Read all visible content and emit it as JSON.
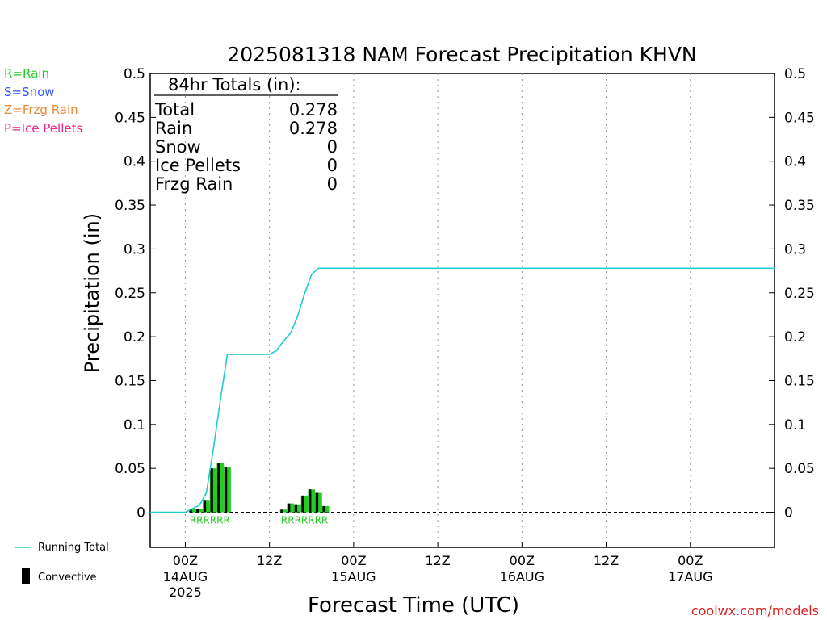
{
  "chart_data": {
    "type": "bar",
    "title": "2025081318 NAM Forecast Precipitation KHVN",
    "ylabel": "Precipitation (in)",
    "xlabel": "Forecast Time (UTC)",
    "ylim": [
      -0.04,
      0.5
    ],
    "xlim_hours": [
      -5,
      84
    ],
    "yticks": [
      "0",
      "0.05",
      "0.1",
      "0.15",
      "0.2",
      "0.25",
      "0.3",
      "0.35",
      "0.4",
      "0.45",
      "0.5"
    ],
    "xticks": [
      {
        "hour": 0,
        "label": "00Z",
        "date": "14AUG",
        "year": "2025"
      },
      {
        "hour": 12,
        "label": "12Z",
        "date": "",
        "year": ""
      },
      {
        "hour": 24,
        "label": "00Z",
        "date": "15AUG",
        "year": ""
      },
      {
        "hour": 36,
        "label": "12Z",
        "date": "",
        "year": ""
      },
      {
        "hour": 48,
        "label": "00Z",
        "date": "16AUG",
        "year": ""
      },
      {
        "hour": 60,
        "label": "12Z",
        "date": "",
        "year": ""
      },
      {
        "hour": 72,
        "label": "00Z",
        "date": "17AUG",
        "year": ""
      }
    ],
    "grid": "vertical-dotted",
    "legend_types": [
      "R=Rain",
      "S=Snow",
      "Z=Frzg Rain",
      "P=Ice Pellets"
    ],
    "legend_series": [
      "Running Total",
      "Convective"
    ],
    "totals_header": "84hr Totals (in):",
    "totals": [
      {
        "label": "Total",
        "value": "0.278"
      },
      {
        "label": "Rain",
        "value": "0.278"
      },
      {
        "label": "Snow",
        "value": "0"
      },
      {
        "label": "Ice Pellets",
        "value": "0"
      },
      {
        "label": "Frzg Rain",
        "value": "0"
      }
    ],
    "precip_bars": [
      {
        "hour": 1,
        "rain": 0.004,
        "convective": 0.004,
        "type": "R"
      },
      {
        "hour": 2,
        "rain": 0.004,
        "convective": 0.004,
        "type": "R"
      },
      {
        "hour": 3,
        "rain": 0.014,
        "convective": 0.014,
        "type": "R"
      },
      {
        "hour": 4,
        "rain": 0.05,
        "convective": 0.05,
        "type": "R"
      },
      {
        "hour": 5,
        "rain": 0.056,
        "convective": 0.056,
        "type": "R"
      },
      {
        "hour": 6,
        "rain": 0.051,
        "convective": 0.051,
        "type": "R"
      },
      {
        "hour": 14,
        "rain": 0.003,
        "convective": 0.003,
        "type": "R"
      },
      {
        "hour": 15,
        "rain": 0.01,
        "convective": 0.01,
        "type": "R"
      },
      {
        "hour": 16,
        "rain": 0.009,
        "convective": 0.009,
        "type": "R"
      },
      {
        "hour": 17,
        "rain": 0.019,
        "convective": 0.019,
        "type": "R"
      },
      {
        "hour": 18,
        "rain": 0.026,
        "convective": 0.026,
        "type": "R"
      },
      {
        "hour": 19,
        "rain": 0.022,
        "convective": 0.022,
        "type": "R"
      },
      {
        "hour": 20,
        "rain": 0.007,
        "convective": 0.007,
        "type": "R"
      }
    ],
    "running_total": {
      "hours": [
        -5,
        0,
        1,
        2,
        3,
        4,
        5,
        6,
        11,
        12,
        13,
        14,
        15,
        16,
        17,
        18,
        19,
        20,
        84
      ],
      "values": [
        0,
        0,
        0.004,
        0.008,
        0.022,
        0.072,
        0.128,
        0.18,
        0.18,
        0.18,
        0.184,
        0.195,
        0.204,
        0.223,
        0.249,
        0.271,
        0.278,
        0.278,
        0.278
      ]
    },
    "type_labels": [
      "RRRRRR",
      "RRRRRRR"
    ],
    "credit": "coolwx.com/models",
    "colors": {
      "rain": "#22cc22",
      "snow": "#3355ff",
      "frzg": "#ee8833",
      "ice": "#ee2288",
      "running_total": "#22cccc",
      "convective": "#000000",
      "credit": "#dd2222"
    }
  }
}
